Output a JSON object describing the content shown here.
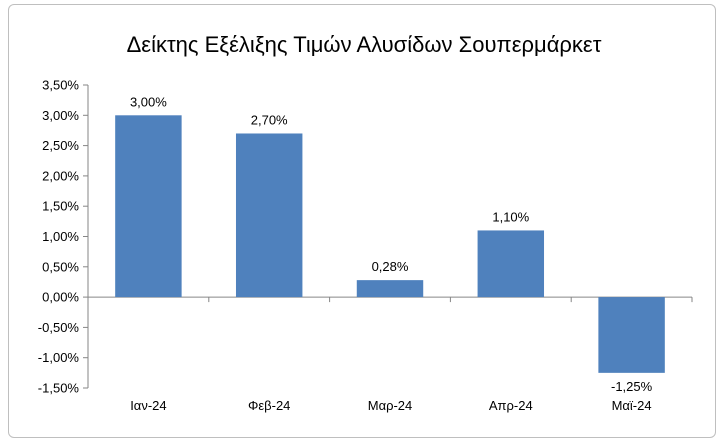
{
  "chart_data": {
    "type": "bar",
    "title": "Δείκτης Εξέλιξης Τιμών Αλυσίδων Σουπερμάρκετ",
    "xlabel": "",
    "ylabel": "",
    "categories": [
      "Ιαν-24",
      "Φεβ-24",
      "Μαρ-24",
      "Απρ-24",
      "Μαϊ-24"
    ],
    "values": [
      3.0,
      2.7,
      0.28,
      1.1,
      -1.25
    ],
    "data_labels": [
      "3,00%",
      "2,70%",
      "0,28%",
      "1,10%",
      "-1,25%"
    ],
    "ylim": [
      -1.5,
      3.5
    ],
    "yticks": [
      -1.5,
      -1.0,
      -0.5,
      0.0,
      0.5,
      1.0,
      1.5,
      2.0,
      2.5,
      3.0,
      3.5
    ],
    "ytick_labels": [
      "-1,50%",
      "-1,00%",
      "-0,50%",
      "0,00%",
      "0,50%",
      "1,00%",
      "1,50%",
      "2,00%",
      "2,50%",
      "3,00%",
      "3,50%"
    ],
    "grid": false,
    "legend": "none",
    "bar_color": "#4f81bd",
    "axis_color": "#868686"
  }
}
